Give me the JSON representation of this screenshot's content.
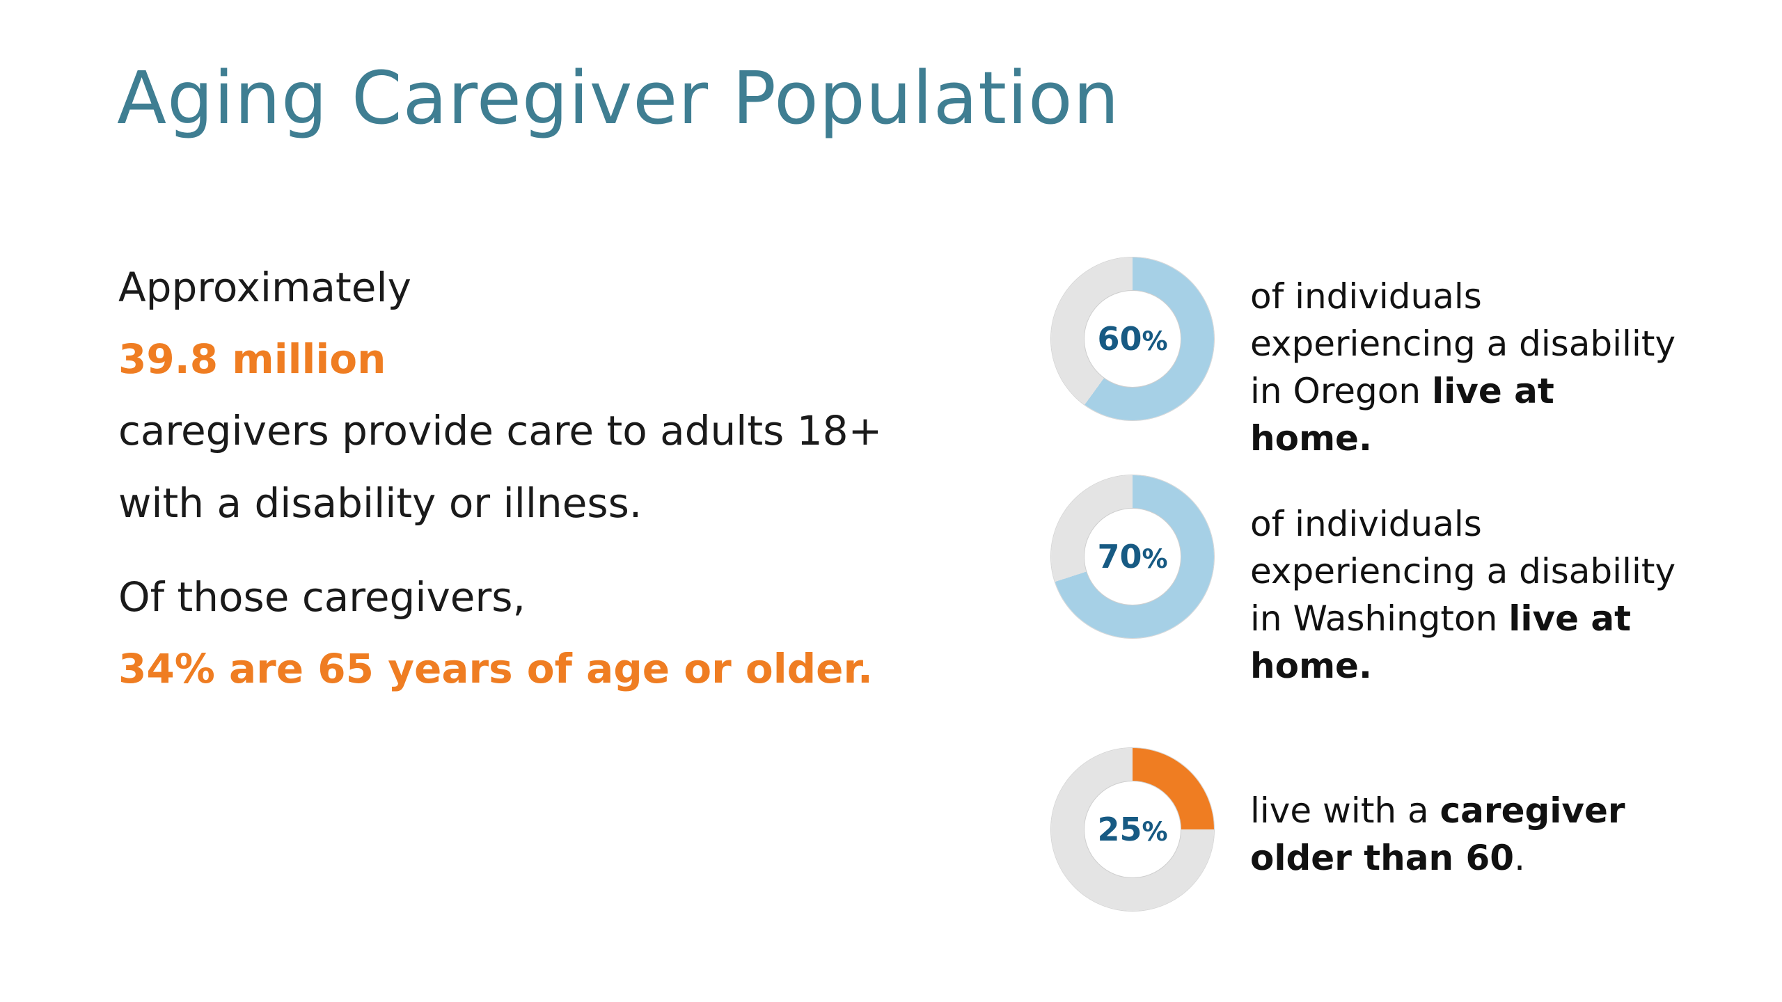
{
  "title": {
    "text": "Aging Caregiver Population",
    "color": "#3f7e92"
  },
  "intro": {
    "approximately": "Approximately",
    "big_number": "39.8 million",
    "sentence": "caregivers provide care to adults 18+ with a disability or illness.",
    "of_those": "Of those caregivers,",
    "age_stat": "34% are 65 years of age or older."
  },
  "colors": {
    "title_teal": "#3f7e92",
    "accent_orange": "#ef7d22",
    "donut_blue": "#a6d0e6",
    "donut_gray_remainder": "#e4e4e4",
    "percent_label_navy": "#175a83",
    "body_text": "#111111",
    "background": "#ffffff"
  },
  "chart_data": {
    "type": "pie",
    "subtype": "donut",
    "legend": false,
    "remainder_color": "#e4e4e4",
    "donuts": [
      {
        "value": 60,
        "remainder": 40,
        "label_value": "60",
        "label_suffix": "%",
        "color": "#a6d0e6",
        "caption_normal": "of individuals experiencing a disability in Oregon ",
        "caption_bold": "live at home."
      },
      {
        "value": 70,
        "remainder": 30,
        "label_value": "70",
        "label_suffix": "%",
        "color": "#a6d0e6",
        "caption_normal": "of individuals experiencing a disability in Washington ",
        "caption_bold": "live at home."
      },
      {
        "value": 25,
        "remainder": 75,
        "label_value": "25",
        "label_suffix": "%",
        "color": "#ef7d22",
        "caption_pre": "live with a ",
        "caption_bold": "caregiver older than 60",
        "caption_post": "."
      }
    ]
  }
}
